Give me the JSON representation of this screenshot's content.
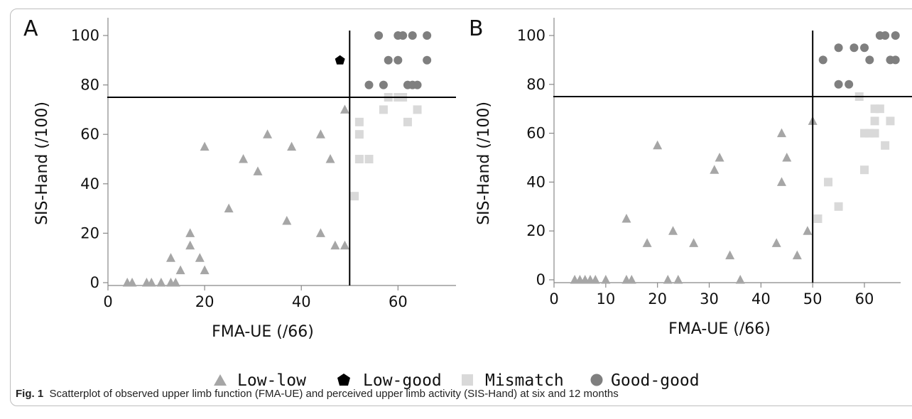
{
  "chart_data": [
    {
      "type": "scatter",
      "panel": "A",
      "xlabel": "FMA-UE (/66)",
      "ylabel": "SIS-Hand (/100)",
      "xlim": [
        0,
        72
      ],
      "ylim": [
        -2,
        105
      ],
      "xticks": [
        0,
        20,
        40,
        60
      ],
      "yticks": [
        0,
        20,
        40,
        60,
        80,
        100
      ],
      "cutoff_x": 50,
      "cutoff_y": 75,
      "series": [
        {
          "name": "Low-low",
          "points": [
            [
              4,
              0
            ],
            [
              5,
              0
            ],
            [
              8,
              0
            ],
            [
              9,
              0
            ],
            [
              11,
              0
            ],
            [
              13,
              0
            ],
            [
              14,
              0
            ],
            [
              13,
              10
            ],
            [
              15,
              5
            ],
            [
              17,
              15
            ],
            [
              17,
              20
            ],
            [
              19,
              10
            ],
            [
              20,
              5
            ],
            [
              20,
              55
            ],
            [
              25,
              30
            ],
            [
              28,
              50
            ],
            [
              31,
              45
            ],
            [
              33,
              60
            ],
            [
              37,
              25
            ],
            [
              38,
              55
            ],
            [
              44,
              60
            ],
            [
              44,
              20
            ],
            [
              46,
              50
            ],
            [
              47,
              15
            ],
            [
              49,
              15
            ],
            [
              49,
              70
            ]
          ]
        },
        {
          "name": "Low-good",
          "points": [
            [
              48,
              90
            ]
          ]
        },
        {
          "name": "Mismatch",
          "points": [
            [
              51,
              35
            ],
            [
              52,
              65
            ],
            [
              52,
              60
            ],
            [
              52,
              50
            ],
            [
              54,
              50
            ],
            [
              57,
              70
            ],
            [
              58,
              75
            ],
            [
              60,
              75
            ],
            [
              61,
              75
            ],
            [
              62,
              65
            ],
            [
              64,
              70
            ]
          ]
        },
        {
          "name": "Good-good",
          "points": [
            [
              56,
              100
            ],
            [
              60,
              100
            ],
            [
              61,
              100
            ],
            [
              63,
              100
            ],
            [
              66,
              100
            ],
            [
              58,
              90
            ],
            [
              60,
              90
            ],
            [
              66,
              90
            ],
            [
              54,
              80
            ],
            [
              57,
              80
            ],
            [
              62,
              80
            ],
            [
              63,
              80
            ],
            [
              64,
              80
            ]
          ]
        }
      ]
    },
    {
      "type": "scatter",
      "panel": "B",
      "xlabel": "FMA-UE (/66)",
      "ylabel": "SIS-Hand (/100)",
      "xlim": [
        0,
        67
      ],
      "ylim": [
        -2,
        105
      ],
      "xticks": [
        0,
        10,
        20,
        30,
        40,
        50,
        60
      ],
      "yticks": [
        0,
        20,
        40,
        60,
        80,
        100
      ],
      "cutoff_x": 50,
      "cutoff_y": 75,
      "series": [
        {
          "name": "Low-low",
          "points": [
            [
              4,
              0
            ],
            [
              5,
              0
            ],
            [
              6,
              0
            ],
            [
              7,
              0
            ],
            [
              8,
              0
            ],
            [
              10,
              0
            ],
            [
              14,
              0
            ],
            [
              15,
              0
            ],
            [
              14,
              25
            ],
            [
              18,
              15
            ],
            [
              20,
              55
            ],
            [
              22,
              0
            ],
            [
              23,
              20
            ],
            [
              24,
              0
            ],
            [
              27,
              15
            ],
            [
              31,
              45
            ],
            [
              32,
              50
            ],
            [
              34,
              10
            ],
            [
              36,
              0
            ],
            [
              43,
              15
            ],
            [
              44,
              40
            ],
            [
              44,
              60
            ],
            [
              45,
              50
            ],
            [
              47,
              10
            ],
            [
              49,
              20
            ],
            [
              50,
              65
            ]
          ]
        },
        {
          "name": "Mismatch",
          "points": [
            [
              51,
              25
            ],
            [
              53,
              40
            ],
            [
              55,
              30
            ],
            [
              59,
              75
            ],
            [
              60,
              45
            ],
            [
              60,
              60
            ],
            [
              61,
              60
            ],
            [
              62,
              60
            ],
            [
              62,
              65
            ],
            [
              62,
              70
            ],
            [
              63,
              70
            ],
            [
              64,
              55
            ],
            [
              65,
              65
            ]
          ]
        },
        {
          "name": "Good-good",
          "points": [
            [
              52,
              90
            ],
            [
              55,
              95
            ],
            [
              55,
              80
            ],
            [
              57,
              80
            ],
            [
              58,
              95
            ],
            [
              60,
              95
            ],
            [
              61,
              90
            ],
            [
              63,
              100
            ],
            [
              64,
              100
            ],
            [
              65,
              90
            ],
            [
              66,
              90
            ],
            [
              66,
              100
            ]
          ]
        }
      ]
    }
  ],
  "legend": {
    "items": [
      {
        "label": "Low-low",
        "symbol": "triangle",
        "color": "#a6a6a6"
      },
      {
        "label": "Low-good",
        "symbol": "pentagon",
        "color": "#000000"
      },
      {
        "label": "Mismatch",
        "symbol": "square",
        "color": "#d9d9d9"
      },
      {
        "label": "Good-good",
        "symbol": "circle",
        "color": "#7f7f7f"
      }
    ]
  },
  "colors": {
    "Low-low": "#a6a6a6",
    "Low-good": "#000000",
    "Mismatch": "#d9d9d9",
    "Good-good": "#7f7f7f"
  },
  "caption": {
    "label": "Fig. 1",
    "text": "Scatterplot of observed upper limb function (FMA-UE) and perceived upper limb activity (SIS-Hand) at six and 12 months"
  }
}
